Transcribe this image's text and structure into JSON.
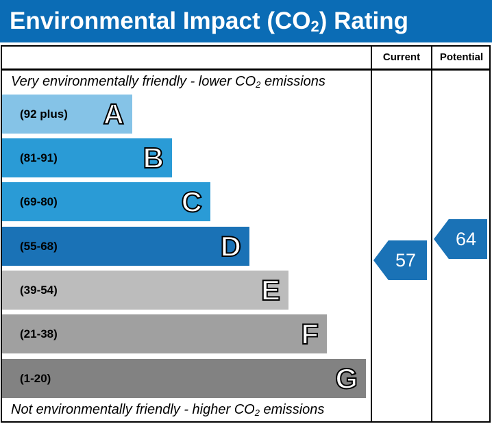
{
  "title_main": "Environmental Impact (CO",
  "title_sub": "2",
  "title_end": ") Rating",
  "columns": {
    "current": "Current",
    "potential": "Potential"
  },
  "top_note": {
    "pre": "Very environmentally friendly - lower CO",
    "sub": "2",
    "post": " emissions"
  },
  "bottom_note": {
    "pre": "Not environmentally friendly - higher CO",
    "sub": "2",
    "post": " emissions"
  },
  "chart_data": {
    "type": "bar",
    "bands": [
      {
        "letter": "A",
        "range": "(92 plus)",
        "color": "#85c3e7"
      },
      {
        "letter": "B",
        "range": "(81-91)",
        "color": "#2a9bd6"
      },
      {
        "letter": "C",
        "range": "(69-80)",
        "color": "#2a9bd6"
      },
      {
        "letter": "D",
        "range": "(55-68)",
        "color": "#1a72b6"
      },
      {
        "letter": "E",
        "range": "(39-54)",
        "color": "#bcbcbc"
      },
      {
        "letter": "F",
        "range": "(21-38)",
        "color": "#a0a0a0"
      },
      {
        "letter": "G",
        "range": "(1-20)",
        "color": "#828282"
      }
    ],
    "current": "57",
    "potential": "64",
    "arrow_color": "#1a72b6"
  }
}
